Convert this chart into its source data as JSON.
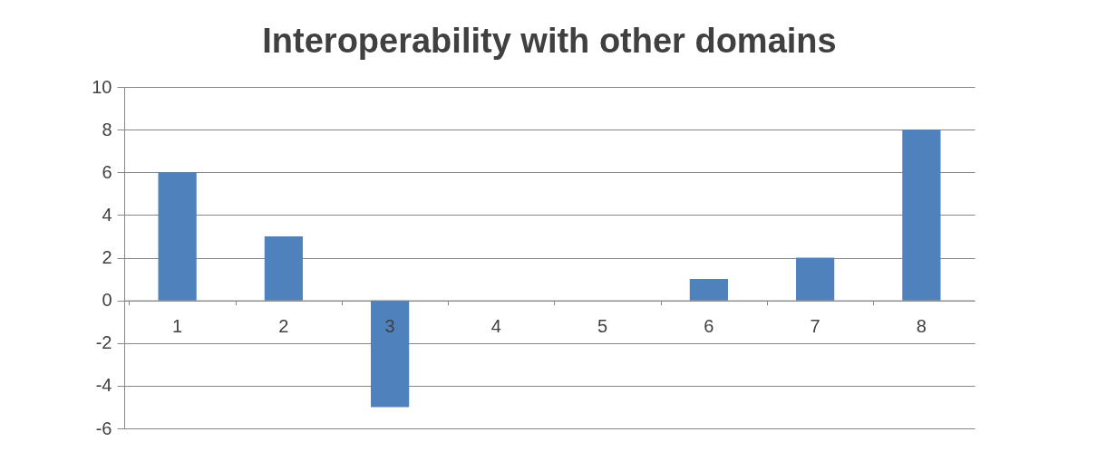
{
  "chart_data": {
    "type": "bar",
    "title": "Interoperability with other domains",
    "categories": [
      "1",
      "2",
      "3",
      "4",
      "5",
      "6",
      "7",
      "8"
    ],
    "values": [
      6,
      3,
      -5,
      0,
      0,
      1,
      2,
      8
    ],
    "color": "#4f81bd",
    "ylim": [
      -6,
      10
    ],
    "yticks": [
      -6,
      -4,
      -2,
      0,
      2,
      4,
      6,
      8,
      10
    ],
    "grid": "y"
  }
}
